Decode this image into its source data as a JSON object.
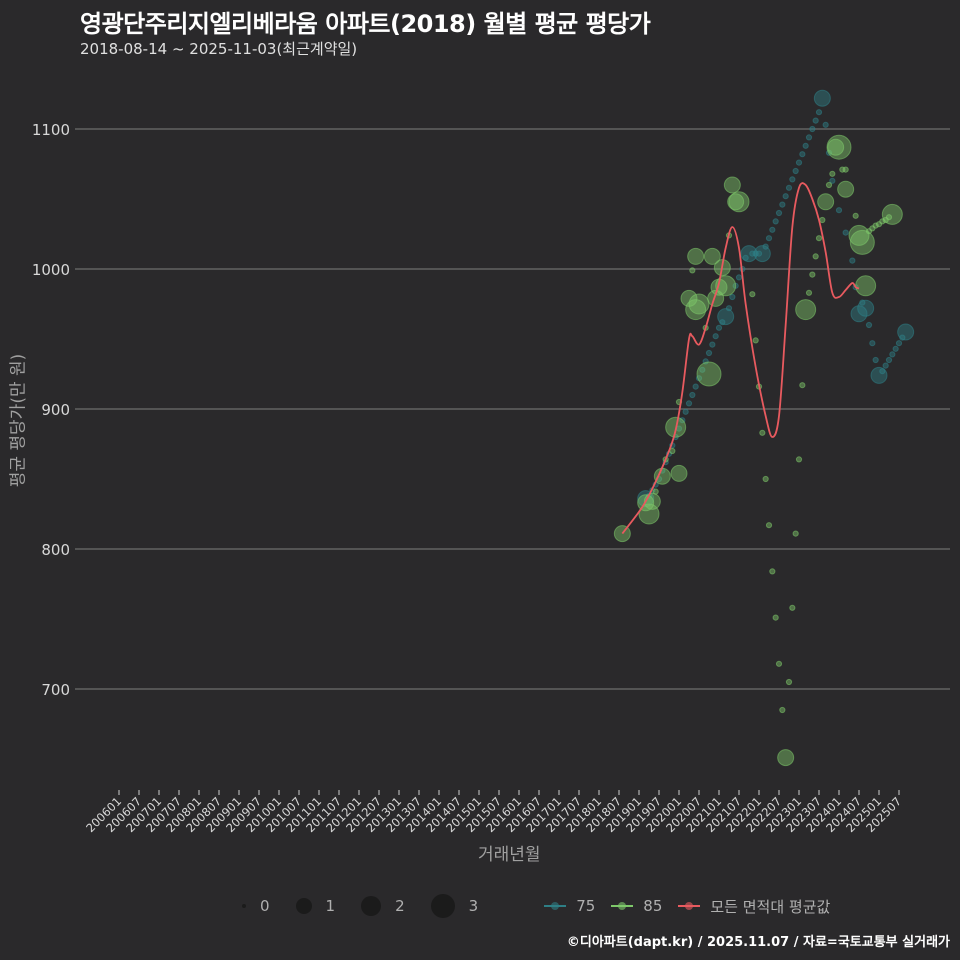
{
  "header": {
    "title": "영광단주리지엘리베라움 아파트(2018) 월별 평균 평당가",
    "subtitle": "2018-08-14 ~ 2025-11-03(최근계약일)"
  },
  "footer": "©디아파트(dapt.kr) / 2025.11.07 / 자료=국토교통부 실거래가",
  "colors": {
    "background": "#2a292b",
    "grid": "#6e6e6e",
    "series_75": "#2e7f86",
    "series_85": "#7ec86a",
    "average_line": "#e85a5f"
  },
  "legend": {
    "size_items": [
      {
        "label": "0",
        "size": 4
      },
      {
        "label": "1",
        "size": 16
      },
      {
        "label": "2",
        "size": 20
      },
      {
        "label": "3",
        "size": 24
      }
    ],
    "line_items": [
      {
        "label": "75",
        "color": "#2e7f86"
      },
      {
        "label": "85",
        "color": "#7ec86a"
      },
      {
        "label": "모든 면적대 평균값",
        "color": "#e85a5f"
      }
    ]
  },
  "chart_data": {
    "type": "scatter",
    "title": "영광단주리지엘리베라움 아파트(2018) 월별 평균 평당가",
    "subtitle": "2018-08-14 ~ 2025-11-03(최근계약일)",
    "xlabel": "거래년월",
    "ylabel": "평균 평당가(만 원)",
    "ylim": [
      630,
      1130
    ],
    "yticks": [
      700,
      800,
      900,
      1000,
      1100
    ],
    "xticks": [
      "200601",
      "200607",
      "200701",
      "200707",
      "200801",
      "200807",
      "200901",
      "200907",
      "201001",
      "201007",
      "201101",
      "201107",
      "201201",
      "201207",
      "201301",
      "201307",
      "201401",
      "201407",
      "201501",
      "201507",
      "201601",
      "201607",
      "201701",
      "201707",
      "201801",
      "201807",
      "201901",
      "201907",
      "202001",
      "202007",
      "202101",
      "202107",
      "202201",
      "202207",
      "202301",
      "202307",
      "202401",
      "202407",
      "202501",
      "202507"
    ],
    "grid": true,
    "legend_position": "bottom",
    "series": [
      {
        "name": "75",
        "color": "#2e7f86",
        "points": [
          {
            "x": "2019-03",
            "y": 836,
            "n": 1
          },
          {
            "x": "2019-04",
            "y": 838,
            "n": 0
          },
          {
            "x": "2019-05",
            "y": 842,
            "n": 0
          },
          {
            "x": "2019-06",
            "y": 846,
            "n": 0
          },
          {
            "x": "2019-07",
            "y": 850,
            "n": 0
          },
          {
            "x": "2019-08",
            "y": 856,
            "n": 0
          },
          {
            "x": "2019-09",
            "y": 862,
            "n": 0
          },
          {
            "x": "2019-10",
            "y": 868,
            "n": 0
          },
          {
            "x": "2019-11",
            "y": 874,
            "n": 0
          },
          {
            "x": "2019-12",
            "y": 880,
            "n": 0
          },
          {
            "x": "2020-01",
            "y": 886,
            "n": 0
          },
          {
            "x": "2020-02",
            "y": 892,
            "n": 0
          },
          {
            "x": "2020-03",
            "y": 898,
            "n": 0
          },
          {
            "x": "2020-04",
            "y": 904,
            "n": 0
          },
          {
            "x": "2020-05",
            "y": 910,
            "n": 0
          },
          {
            "x": "2020-06",
            "y": 916,
            "n": 0
          },
          {
            "x": "2020-07",
            "y": 922,
            "n": 0
          },
          {
            "x": "2020-08",
            "y": 928,
            "n": 0
          },
          {
            "x": "2020-09",
            "y": 934,
            "n": 0
          },
          {
            "x": "2020-10",
            "y": 940,
            "n": 0
          },
          {
            "x": "2020-11",
            "y": 946,
            "n": 0
          },
          {
            "x": "2020-12",
            "y": 952,
            "n": 0
          },
          {
            "x": "2021-01",
            "y": 958,
            "n": 0
          },
          {
            "x": "2021-02",
            "y": 962,
            "n": 0
          },
          {
            "x": "2021-03",
            "y": 966,
            "n": 1
          },
          {
            "x": "2021-04",
            "y": 972,
            "n": 0
          },
          {
            "x": "2021-05",
            "y": 980,
            "n": 0
          },
          {
            "x": "2021-06",
            "y": 988,
            "n": 0
          },
          {
            "x": "2021-07",
            "y": 994,
            "n": 0
          },
          {
            "x": "2021-08",
            "y": 1000,
            "n": 0
          },
          {
            "x": "2021-09",
            "y": 1008,
            "n": 0
          },
          {
            "x": "2021-10",
            "y": 1011,
            "n": 1
          },
          {
            "x": "2021-11",
            "y": 1011,
            "n": 0
          },
          {
            "x": "2021-12",
            "y": 1011,
            "n": 0
          },
          {
            "x": "2022-01",
            "y": 1011,
            "n": 0
          },
          {
            "x": "2022-02",
            "y": 1011,
            "n": 1
          },
          {
            "x": "2022-03",
            "y": 1016,
            "n": 0
          },
          {
            "x": "2022-04",
            "y": 1022,
            "n": 0
          },
          {
            "x": "2022-05",
            "y": 1028,
            "n": 0
          },
          {
            "x": "2022-06",
            "y": 1034,
            "n": 0
          },
          {
            "x": "2022-07",
            "y": 1040,
            "n": 0
          },
          {
            "x": "2022-08",
            "y": 1046,
            "n": 0
          },
          {
            "x": "2022-09",
            "y": 1052,
            "n": 0
          },
          {
            "x": "2022-10",
            "y": 1058,
            "n": 0
          },
          {
            "x": "2022-11",
            "y": 1064,
            "n": 0
          },
          {
            "x": "2022-12",
            "y": 1070,
            "n": 0
          },
          {
            "x": "2023-01",
            "y": 1076,
            "n": 0
          },
          {
            "x": "2023-02",
            "y": 1082,
            "n": 0
          },
          {
            "x": "2023-03",
            "y": 1088,
            "n": 0
          },
          {
            "x": "2023-04",
            "y": 1094,
            "n": 0
          },
          {
            "x": "2023-05",
            "y": 1100,
            "n": 0
          },
          {
            "x": "2023-06",
            "y": 1106,
            "n": 0
          },
          {
            "x": "2023-07",
            "y": 1112,
            "n": 0
          },
          {
            "x": "2023-08",
            "y": 1122,
            "n": 1
          },
          {
            "x": "2023-09",
            "y": 1103,
            "n": 0
          },
          {
            "x": "2023-10",
            "y": 1083,
            "n": 0
          },
          {
            "x": "2023-11",
            "y": 1063,
            "n": 0
          },
          {
            "x": "2024-01",
            "y": 1042,
            "n": 0
          },
          {
            "x": "2024-03",
            "y": 1026,
            "n": 0
          },
          {
            "x": "2024-05",
            "y": 1006,
            "n": 0
          },
          {
            "x": "2024-06",
            "y": 987,
            "n": 0
          },
          {
            "x": "2024-07",
            "y": 968,
            "n": 1
          },
          {
            "x": "2024-08",
            "y": 976,
            "n": 0
          },
          {
            "x": "2024-09",
            "y": 972,
            "n": 1
          },
          {
            "x": "2024-10",
            "y": 960,
            "n": 0
          },
          {
            "x": "2024-11",
            "y": 947,
            "n": 0
          },
          {
            "x": "2024-12",
            "y": 935,
            "n": 0
          },
          {
            "x": "2025-01",
            "y": 924,
            "n": 1
          },
          {
            "x": "2025-02",
            "y": 927,
            "n": 0
          },
          {
            "x": "2025-03",
            "y": 931,
            "n": 0
          },
          {
            "x": "2025-04",
            "y": 935,
            "n": 0
          },
          {
            "x": "2025-05",
            "y": 939,
            "n": 0
          },
          {
            "x": "2025-06",
            "y": 943,
            "n": 0
          },
          {
            "x": "2025-07",
            "y": 947,
            "n": 0
          },
          {
            "x": "2025-08",
            "y": 951,
            "n": 0
          },
          {
            "x": "2025-09",
            "y": 955,
            "n": 1
          }
        ]
      },
      {
        "name": "85",
        "color": "#7ec86a",
        "points": [
          {
            "x": "2018-08",
            "y": 811,
            "n": 1
          },
          {
            "x": "2019-03",
            "y": 833,
            "n": 1
          },
          {
            "x": "2019-04",
            "y": 825,
            "n": 2
          },
          {
            "x": "2019-05",
            "y": 834,
            "n": 1
          },
          {
            "x": "2019-06",
            "y": 841,
            "n": 0
          },
          {
            "x": "2019-08",
            "y": 852,
            "n": 1
          },
          {
            "x": "2019-09",
            "y": 864,
            "n": 0
          },
          {
            "x": "2019-12",
            "y": 887,
            "n": 2
          },
          {
            "x": "2019-11",
            "y": 870,
            "n": 0
          },
          {
            "x": "2020-01",
            "y": 854,
            "n": 1
          },
          {
            "x": "2020-01",
            "y": 905,
            "n": 0
          },
          {
            "x": "2020-04",
            "y": 979,
            "n": 1
          },
          {
            "x": "2020-05",
            "y": 999,
            "n": 0
          },
          {
            "x": "2020-06",
            "y": 1009,
            "n": 1
          },
          {
            "x": "2020-06",
            "y": 971,
            "n": 2
          },
          {
            "x": "2020-07",
            "y": 975,
            "n": 2
          },
          {
            "x": "2020-09",
            "y": 958,
            "n": 0
          },
          {
            "x": "2020-10",
            "y": 925,
            "n": 3
          },
          {
            "x": "2020-11",
            "y": 1009,
            "n": 1
          },
          {
            "x": "2020-12",
            "y": 979,
            "n": 1
          },
          {
            "x": "2021-01",
            "y": 987,
            "n": 1
          },
          {
            "x": "2021-02",
            "y": 1001,
            "n": 1
          },
          {
            "x": "2021-03",
            "y": 988,
            "n": 2
          },
          {
            "x": "2021-04",
            "y": 1024,
            "n": 0
          },
          {
            "x": "2021-05",
            "y": 1060,
            "n": 1
          },
          {
            "x": "2021-06",
            "y": 1048,
            "n": 1
          },
          {
            "x": "2021-07",
            "y": 1048,
            "n": 2
          },
          {
            "x": "2021-11",
            "y": 982,
            "n": 0
          },
          {
            "x": "2021-12",
            "y": 949,
            "n": 0
          },
          {
            "x": "2022-01",
            "y": 916,
            "n": 0
          },
          {
            "x": "2022-02",
            "y": 883,
            "n": 0
          },
          {
            "x": "2022-03",
            "y": 850,
            "n": 0
          },
          {
            "x": "2022-04",
            "y": 817,
            "n": 0
          },
          {
            "x": "2022-05",
            "y": 784,
            "n": 0
          },
          {
            "x": "2022-06",
            "y": 751,
            "n": 0
          },
          {
            "x": "2022-07",
            "y": 718,
            "n": 0
          },
          {
            "x": "2022-08",
            "y": 685,
            "n": 0
          },
          {
            "x": "2022-09",
            "y": 651,
            "n": 1
          },
          {
            "x": "2022-10",
            "y": 705,
            "n": 0
          },
          {
            "x": "2022-11",
            "y": 758,
            "n": 0
          },
          {
            "x": "2022-12",
            "y": 811,
            "n": 0
          },
          {
            "x": "2023-01",
            "y": 864,
            "n": 0
          },
          {
            "x": "2023-02",
            "y": 917,
            "n": 0
          },
          {
            "x": "2023-03",
            "y": 971,
            "n": 2
          },
          {
            "x": "2023-04",
            "y": 983,
            "n": 0
          },
          {
            "x": "2023-05",
            "y": 996,
            "n": 0
          },
          {
            "x": "2023-06",
            "y": 1009,
            "n": 0
          },
          {
            "x": "2023-07",
            "y": 1022,
            "n": 0
          },
          {
            "x": "2023-08",
            "y": 1035,
            "n": 0
          },
          {
            "x": "2023-09",
            "y": 1048,
            "n": 1
          },
          {
            "x": "2023-10",
            "y": 1060,
            "n": 0
          },
          {
            "x": "2023-11",
            "y": 1068,
            "n": 0
          },
          {
            "x": "2023-12",
            "y": 1087,
            "n": 1
          },
          {
            "x": "2024-01",
            "y": 1087,
            "n": 3
          },
          {
            "x": "2024-02",
            "y": 1071,
            "n": 0
          },
          {
            "x": "2024-03",
            "y": 1071,
            "n": 0
          },
          {
            "x": "2024-03",
            "y": 1057,
            "n": 1
          },
          {
            "x": "2024-06",
            "y": 1038,
            "n": 0
          },
          {
            "x": "2024-07",
            "y": 1024,
            "n": 2
          },
          {
            "x": "2024-08",
            "y": 1019,
            "n": 3
          },
          {
            "x": "2024-09",
            "y": 988,
            "n": 2
          },
          {
            "x": "2024-10",
            "y": 1027,
            "n": 0
          },
          {
            "x": "2024-11",
            "y": 1029,
            "n": 0
          },
          {
            "x": "2024-12",
            "y": 1031,
            "n": 0
          },
          {
            "x": "2025-01",
            "y": 1032,
            "n": 0
          },
          {
            "x": "2025-02",
            "y": 1034,
            "n": 0
          },
          {
            "x": "2025-03",
            "y": 1035,
            "n": 0
          },
          {
            "x": "2025-04",
            "y": 1037,
            "n": 0
          },
          {
            "x": "2025-05",
            "y": 1039,
            "n": 2
          }
        ]
      },
      {
        "name": "모든 면적대 평균값",
        "type": "line",
        "color": "#e85a5f",
        "points": [
          {
            "x": "2018-08",
            "y": 811
          },
          {
            "x": "2019-02",
            "y": 830
          },
          {
            "x": "2019-06",
            "y": 848
          },
          {
            "x": "2019-10",
            "y": 870
          },
          {
            "x": "2019-12",
            "y": 885
          },
          {
            "x": "2020-02",
            "y": 912
          },
          {
            "x": "2020-04",
            "y": 950
          },
          {
            "x": "2020-05",
            "y": 952
          },
          {
            "x": "2020-07",
            "y": 946
          },
          {
            "x": "2020-09",
            "y": 958
          },
          {
            "x": "2020-11",
            "y": 975
          },
          {
            "x": "2021-01",
            "y": 990
          },
          {
            "x": "2021-03",
            "y": 1015
          },
          {
            "x": "2021-05",
            "y": 1030
          },
          {
            "x": "2021-07",
            "y": 1015
          },
          {
            "x": "2021-09",
            "y": 975
          },
          {
            "x": "2021-12",
            "y": 930
          },
          {
            "x": "2022-03",
            "y": 895
          },
          {
            "x": "2022-05",
            "y": 880
          },
          {
            "x": "2022-07",
            "y": 895
          },
          {
            "x": "2022-09",
            "y": 960
          },
          {
            "x": "2022-11",
            "y": 1030
          },
          {
            "x": "2023-01",
            "y": 1058
          },
          {
            "x": "2023-03",
            "y": 1060
          },
          {
            "x": "2023-05",
            "y": 1050
          },
          {
            "x": "2023-07",
            "y": 1035
          },
          {
            "x": "2023-09",
            "y": 1012
          },
          {
            "x": "2023-11",
            "y": 983
          },
          {
            "x": "2024-01",
            "y": 980
          },
          {
            "x": "2024-03",
            "y": 985
          },
          {
            "x": "2024-05",
            "y": 990
          },
          {
            "x": "2024-06",
            "y": 987
          },
          {
            "x": "2024-07",
            "y": 986
          }
        ]
      }
    ]
  }
}
